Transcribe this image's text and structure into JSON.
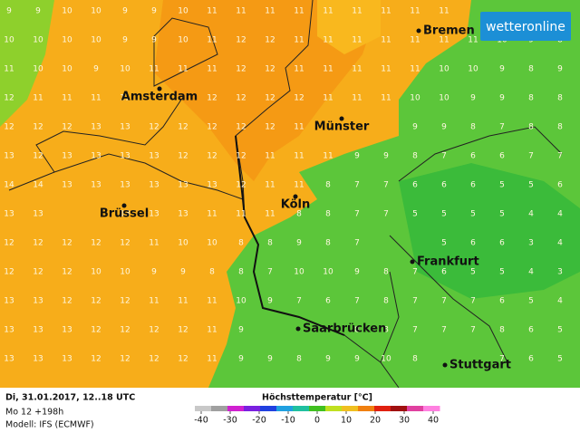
{
  "logo": "wetteronline",
  "cities": [
    "Bremen",
    "Amsterdam",
    "Münster",
    "Köln",
    "Brüssel",
    "Frankfurt",
    "Saarbrücken",
    "Stuttgart"
  ],
  "grid": {
    "rows": [
      [
        9,
        9,
        10,
        10,
        9,
        9,
        10,
        11,
        11,
        11,
        11,
        11,
        11,
        11,
        11,
        11,
        null,
        null,
        null,
        null
      ],
      [
        10,
        10,
        10,
        10,
        9,
        9,
        10,
        11,
        12,
        12,
        11,
        11,
        11,
        11,
        11,
        11,
        11,
        10,
        9,
        8
      ],
      [
        11,
        10,
        10,
        9,
        10,
        11,
        11,
        11,
        12,
        12,
        11,
        11,
        11,
        11,
        11,
        10,
        10,
        9,
        8,
        9
      ],
      [
        12,
        11,
        11,
        11,
        11,
        null,
        null,
        12,
        12,
        12,
        12,
        11,
        11,
        11,
        10,
        10,
        9,
        9,
        8,
        8
      ],
      [
        12,
        12,
        12,
        13,
        13,
        12,
        12,
        12,
        12,
        12,
        11,
        null,
        null,
        null,
        9,
        9,
        8,
        7,
        8,
        8
      ],
      [
        13,
        12,
        13,
        13,
        13,
        13,
        12,
        12,
        12,
        11,
        11,
        11,
        9,
        9,
        8,
        7,
        6,
        6,
        7,
        7
      ],
      [
        14,
        14,
        13,
        13,
        13,
        13,
        13,
        13,
        12,
        11,
        11,
        8,
        7,
        7,
        6,
        6,
        6,
        5,
        5,
        6
      ],
      [
        13,
        13,
        null,
        null,
        13,
        13,
        13,
        11,
        11,
        11,
        8,
        8,
        7,
        7,
        5,
        5,
        5,
        5,
        4,
        4
      ],
      [
        12,
        12,
        12,
        12,
        12,
        11,
        10,
        10,
        8,
        8,
        9,
        8,
        7,
        null,
        null,
        5,
        6,
        6,
        3,
        4
      ],
      [
        12,
        12,
        12,
        10,
        10,
        9,
        9,
        8,
        8,
        7,
        10,
        10,
        9,
        8,
        7,
        6,
        5,
        5,
        4,
        3
      ],
      [
        13,
        13,
        12,
        12,
        12,
        11,
        11,
        11,
        10,
        9,
        7,
        6,
        7,
        8,
        7,
        7,
        7,
        6,
        5,
        4
      ],
      [
        13,
        13,
        13,
        12,
        12,
        12,
        12,
        11,
        9,
        null,
        null,
        null,
        8,
        8,
        7,
        7,
        7,
        8,
        6,
        5
      ],
      [
        13,
        13,
        13,
        12,
        12,
        12,
        12,
        11,
        9,
        9,
        8,
        9,
        9,
        10,
        8,
        null,
        null,
        7,
        6,
        5
      ]
    ]
  },
  "footer": {
    "date": "Di, 31.01.2017, 12..18 UTC",
    "run": "Mo 12 +198h",
    "model": "Modell: IFS (ECMWF)"
  },
  "legend": {
    "title": "Höchsttemperatur [°C]",
    "ticks": [
      -40,
      -30,
      -20,
      -10,
      0,
      10,
      20,
      30,
      40
    ]
  }
}
